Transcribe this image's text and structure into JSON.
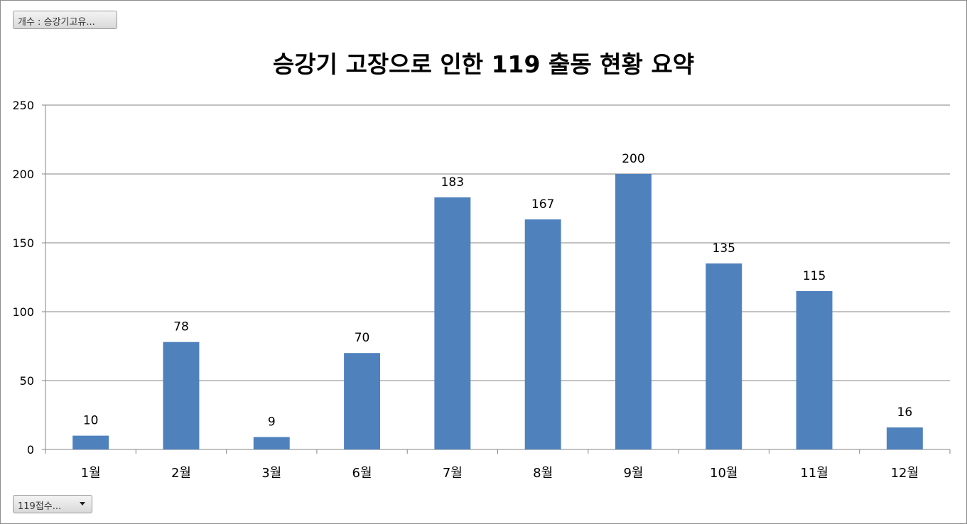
{
  "ui": {
    "values_field_button": "개수 : 승강기고유...",
    "axis_field_button": "119접수..."
  },
  "colors": {
    "bar": "#4f81bd",
    "gridline": "#868686",
    "axis": "#868686",
    "text": "#000000"
  },
  "chart_data": {
    "type": "bar",
    "title": "승강기 고장으로 인한 119 출동 현황 요약",
    "xlabel": "",
    "ylabel": "",
    "categories": [
      "1월",
      "2월",
      "3월",
      "6월",
      "7월",
      "8월",
      "9월",
      "10월",
      "11월",
      "12월"
    ],
    "values": [
      10,
      78,
      9,
      70,
      183,
      167,
      200,
      135,
      115,
      16
    ],
    "ylim": [
      0,
      250
    ],
    "yticks": [
      0,
      50,
      100,
      150,
      200,
      250
    ],
    "grid": true,
    "legend": "none",
    "data_labels": true
  }
}
